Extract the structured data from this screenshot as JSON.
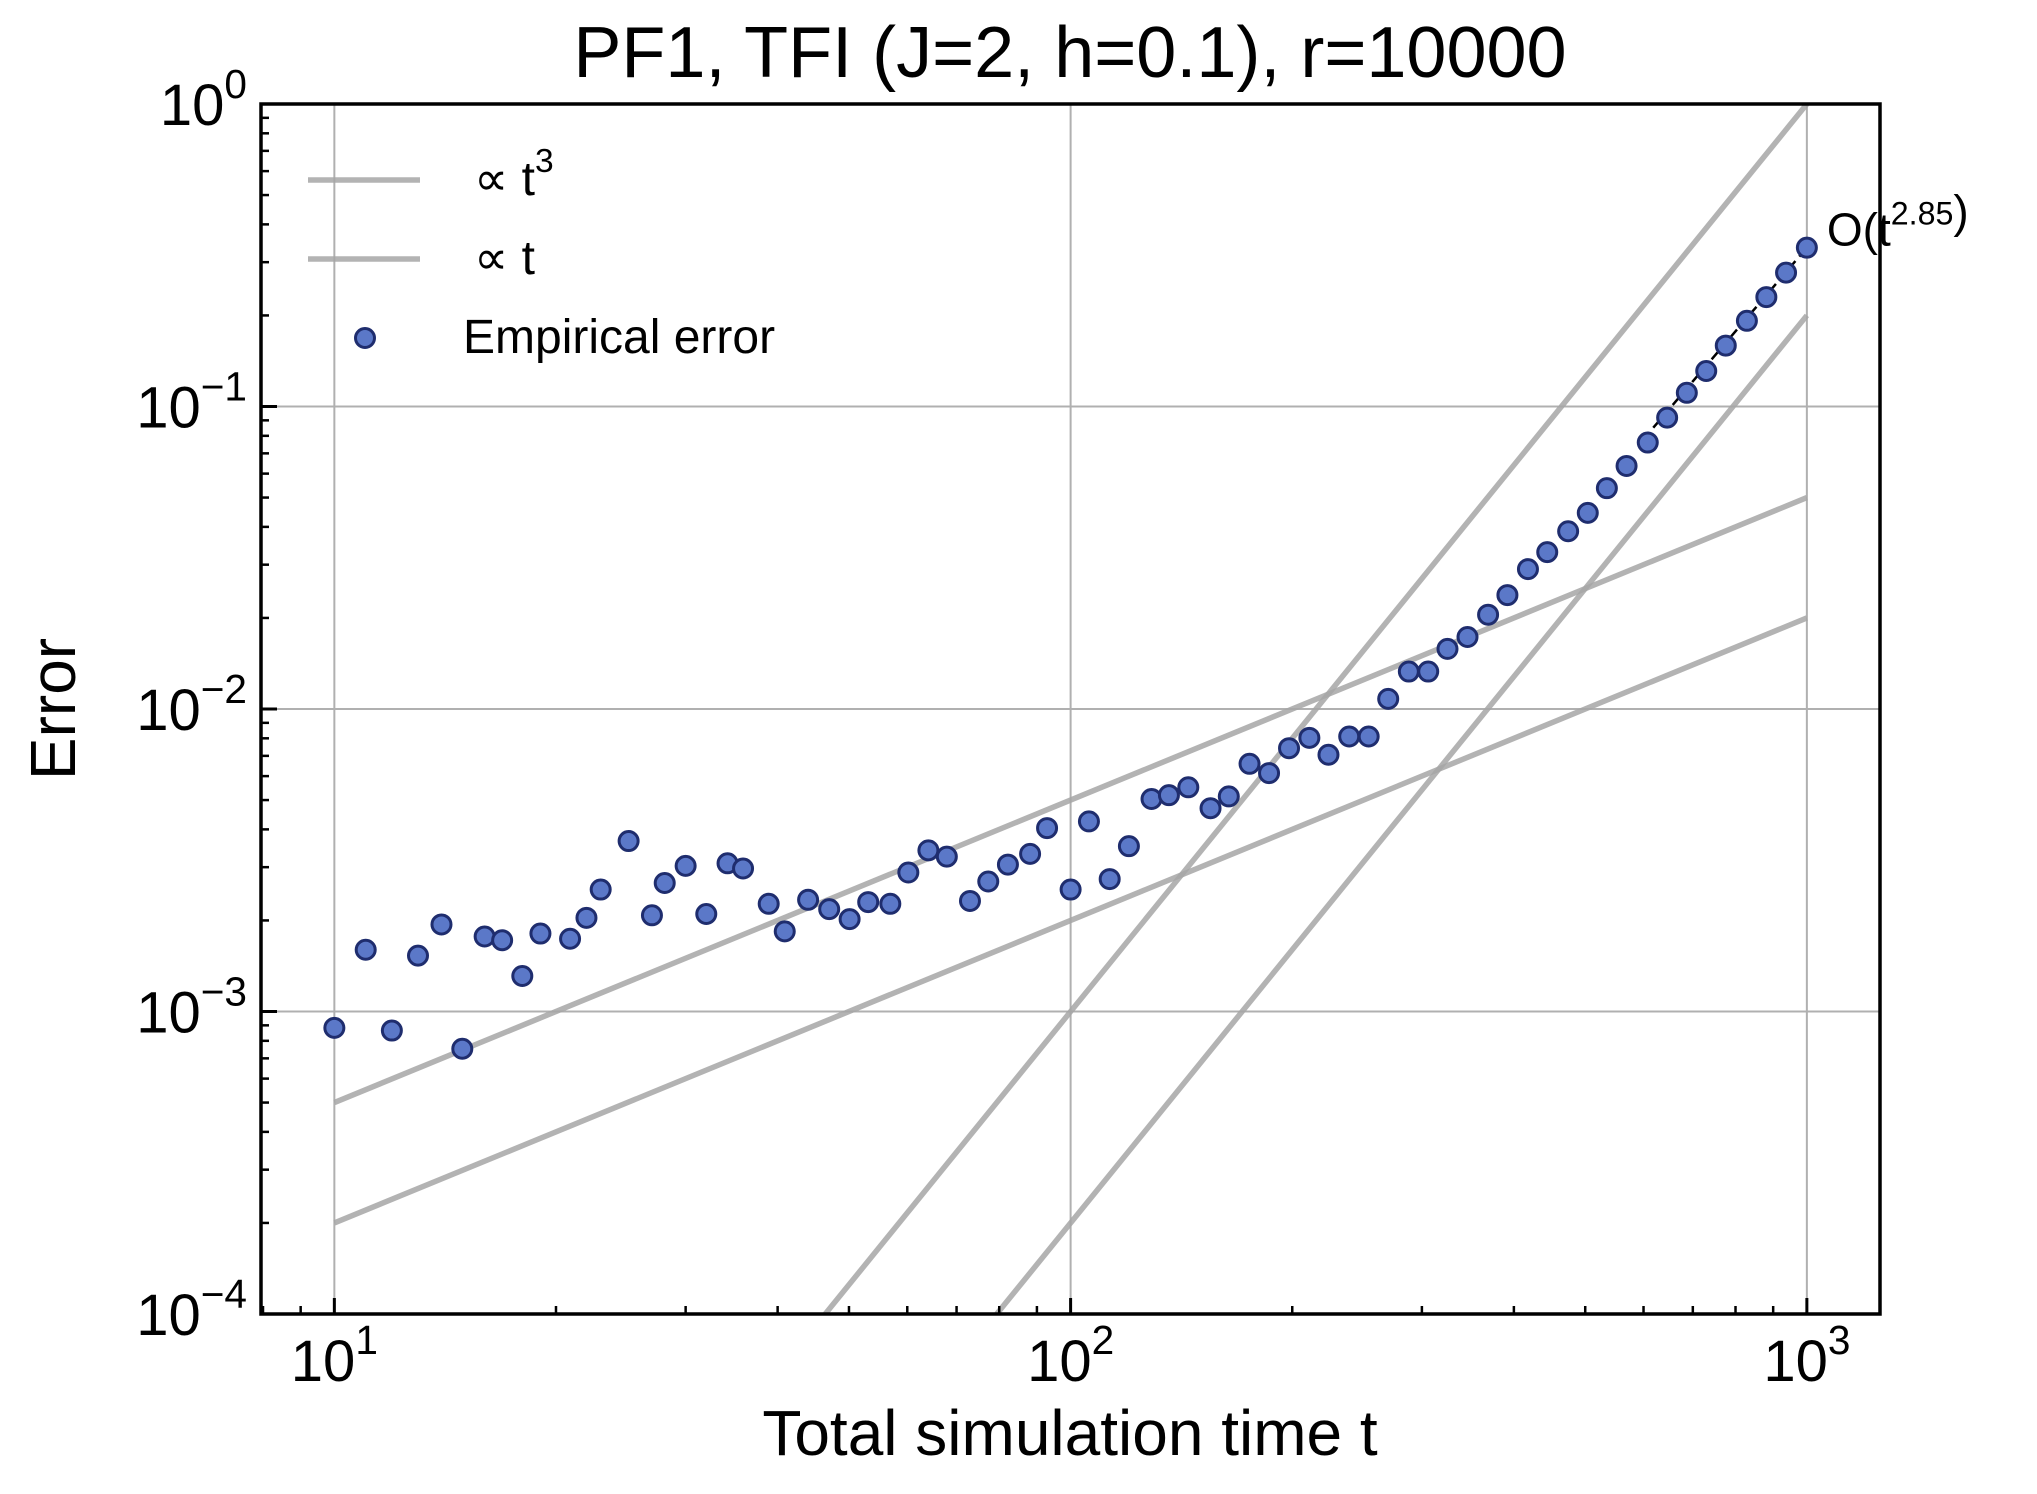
{
  "chart_data": {
    "type": "scatter",
    "title": "PF1, TFI (J=2, h=0.1), r=10000",
    "x_label": "Total simulation time t",
    "y_label": "Error",
    "xscale": "log",
    "yscale": "log",
    "xlim": [
      7.95,
      1257
    ],
    "ylim": [
      0.0001,
      1
    ],
    "xticks": [
      {
        "value": 10,
        "label": "10^{1}"
      },
      {
        "value": 100,
        "label": "10^{2}"
      },
      {
        "value": 1000,
        "label": "10^{3}"
      }
    ],
    "yticks": [
      {
        "value": 0.0001,
        "label": "10^{−4}"
      },
      {
        "value": 0.001,
        "label": "10^{−3}"
      },
      {
        "value": 0.01,
        "label": "10^{−2}"
      },
      {
        "value": 0.1,
        "label": "10^{−1}"
      },
      {
        "value": 1,
        "label": "10^{0}"
      }
    ],
    "grid": true,
    "legend": "upper left",
    "series": [
      {
        "name": "∝ t^{3}",
        "type": "line",
        "color": "#a6a6a6",
        "x": [
          46.42,
          1000,
          null,
          79.37,
          1000
        ],
        "values": [
          0.0001,
          1,
          null,
          0.0001,
          0.2
        ]
      },
      {
        "name": "∝ t",
        "type": "line",
        "color": "#a6a6a6",
        "x": [
          10,
          1000,
          null,
          10,
          1000
        ],
        "values": [
          0.0005,
          0.05,
          null,
          0.0002,
          0.02
        ]
      },
      {
        "name": "Empirical error",
        "type": "scatter",
        "color": "#5b78c8",
        "edgecolor": "#1f2d6e",
        "x": [
          10,
          11.03,
          11.97,
          12.99,
          13.98,
          14.92,
          16.0,
          16.9,
          18.0,
          19.05,
          20.9,
          22.0,
          23.0,
          25.1,
          27.0,
          28.1,
          30.0,
          32.0,
          34.2,
          35.9,
          38.9,
          40.9,
          44.0,
          47.0,
          50.1,
          53.1,
          56.9,
          60.2,
          64.1,
          67.9,
          73.0,
          77.3,
          82.2,
          88.1,
          92.9,
          100,
          105.9,
          113,
          120,
          128.8,
          136,
          144.5,
          154.9,
          164,
          175,
          186,
          198,
          211,
          224,
          239,
          254,
          270,
          288,
          306,
          325,
          346,
          369,
          392,
          418,
          444,
          474,
          504,
          535,
          569,
          608,
          646,
          687,
          730,
          776,
          829,
          881,
          937,
          1000
        ],
        "values": [
          0.000883,
          0.0016,
          0.000865,
          0.00153,
          0.00194,
          0.000753,
          0.00177,
          0.00172,
          0.00131,
          0.00181,
          0.00174,
          0.00204,
          0.00253,
          0.00366,
          0.00208,
          0.00266,
          0.00303,
          0.0021,
          0.00309,
          0.00297,
          0.00227,
          0.00184,
          0.00234,
          0.00218,
          0.00202,
          0.0023,
          0.00227,
          0.00288,
          0.00341,
          0.00325,
          0.00232,
          0.00269,
          0.00306,
          0.00332,
          0.00404,
          0.00253,
          0.00425,
          0.00274,
          0.00352,
          0.00504,
          0.00519,
          0.00551,
          0.0047,
          0.00514,
          0.00659,
          0.00614,
          0.00742,
          0.00803,
          0.00706,
          0.00811,
          0.00811,
          0.0108,
          0.0133,
          0.0133,
          0.0158,
          0.0173,
          0.0205,
          0.0238,
          0.029,
          0.033,
          0.0387,
          0.0445,
          0.0537,
          0.0636,
          0.076,
          0.0919,
          0.111,
          0.131,
          0.159,
          0.192,
          0.23,
          0.277,
          0.335
        ]
      },
      {
        "type": "line",
        "color": "#000000",
        "dash": true,
        "x": [
          600,
          1000
        ],
        "values": [
          0.078,
          0.335
        ]
      }
    ],
    "annotations": [
      {
        "text": "O(t^{2.85})",
        "x": 1000,
        "y": 0.335
      }
    ]
  }
}
